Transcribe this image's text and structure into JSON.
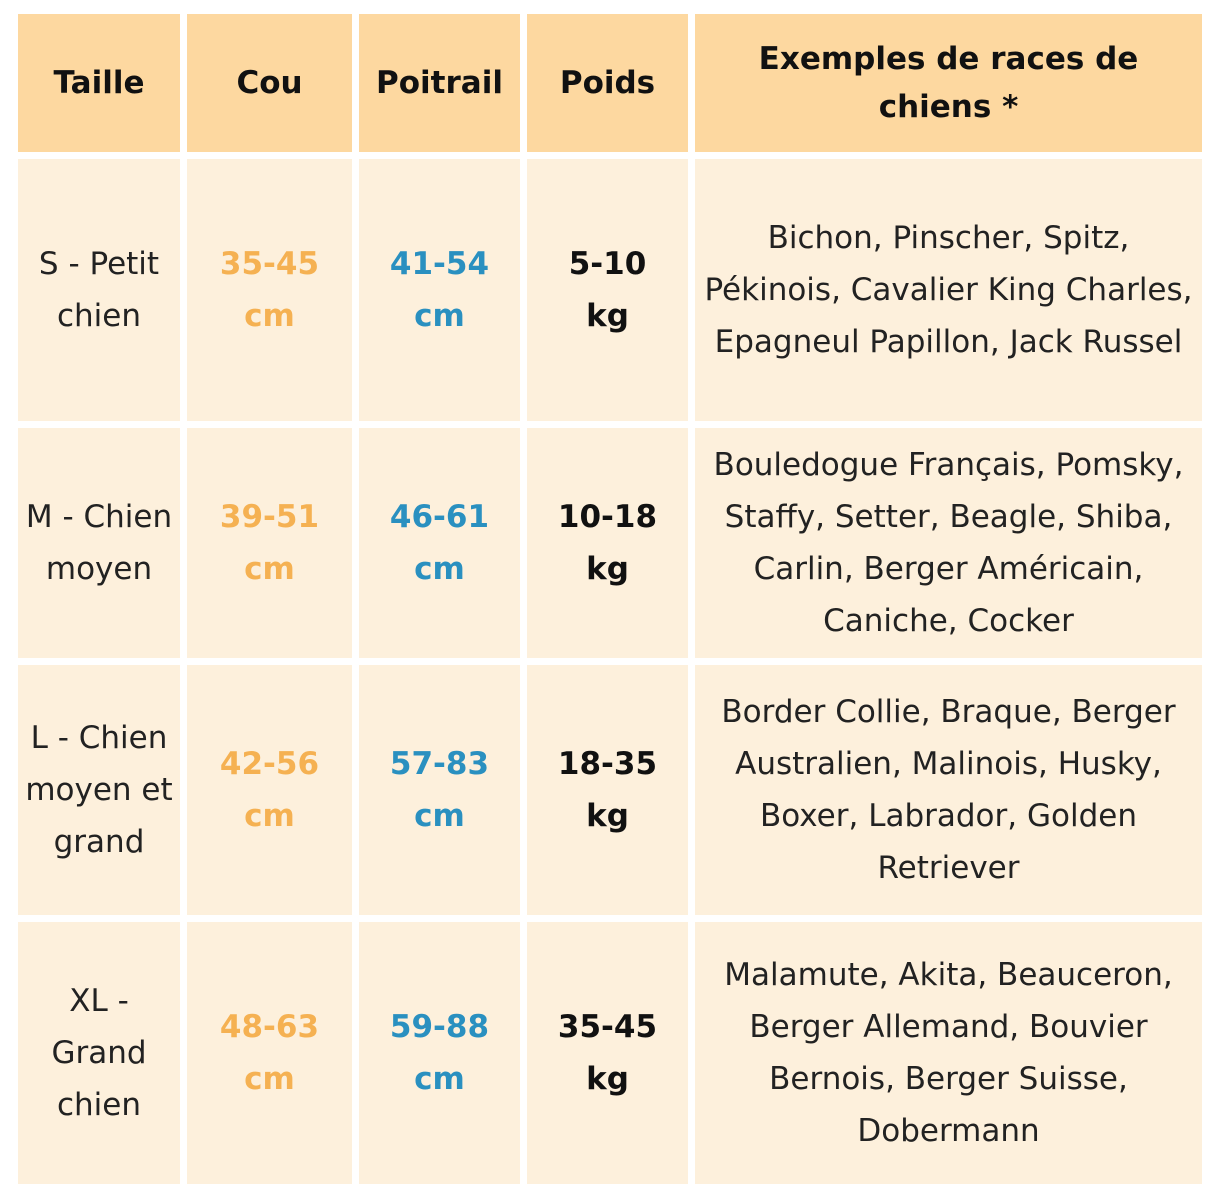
{
  "table": {
    "header": [
      "Taille",
      "Cou",
      "Poitrail",
      "Poids",
      "Exemples de races de chiens *"
    ],
    "rows": [
      [
        "S - Petit chien",
        "35-45 cm",
        "41-54 cm",
        "5-10 kg",
        "Bichon, Pinscher, Spitz, Pékinois, Cavalier King Charles, Epagneul Papillon, Jack Russel"
      ],
      [
        "M - Chien moyen",
        "39-51 cm",
        "46-61 cm",
        "10-18 kg",
        "Bouledogue Français, Pomsky, Staffy, Setter, Beagle, Shiba, Carlin, Berger Américain, Caniche, Cocker"
      ],
      [
        "L - Chien moyen et grand",
        "42-56 cm",
        "57-83 cm",
        "18-35 kg",
        "Border Collie, Braque, Berger Australien, Malinois, Husky, Boxer, Labrador, Golden Retriever"
      ],
      [
        "XL - Grand chien",
        "48-63 cm",
        "59-88 cm",
        "35-45 kg",
        "Malamute, Akita, Beauceron, Berger Allemand, Bouvier Bernois, Berger Suisse, Dobermann"
      ]
    ]
  }
}
